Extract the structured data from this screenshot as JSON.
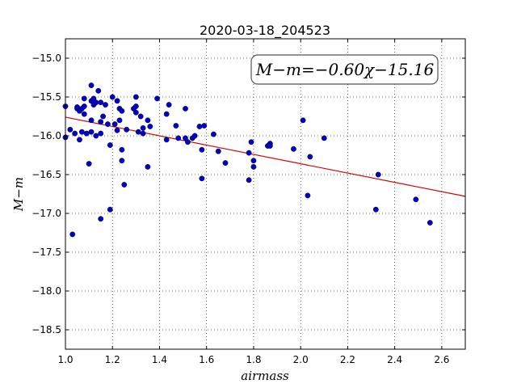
{
  "chart_data": {
    "type": "scatter",
    "title": "2020-03-18_204523",
    "xlabel": "airmass",
    "ylabel": "M−m",
    "xlim": [
      1.0,
      2.7
    ],
    "ylim": [
      -18.75,
      -14.75
    ],
    "y_inverted": true,
    "grid": true,
    "x_ticks": [
      1.0,
      1.2,
      1.4,
      1.6,
      1.8,
      2.0,
      2.2,
      2.4,
      2.6
    ],
    "x_tick_labels": [
      "1.0",
      "1.2",
      "1.4",
      "1.6",
      "1.8",
      "2.0",
      "2.2",
      "2.4",
      "2.6"
    ],
    "y_ticks": [
      -15.0,
      -15.5,
      -16.0,
      -16.5,
      -17.0,
      -17.5,
      -18.0,
      -18.5
    ],
    "y_tick_labels": [
      "−15.0",
      "−15.5",
      "−16.0",
      "−16.5",
      "−17.0",
      "−17.5",
      "−18.0",
      "−18.5"
    ],
    "annotation": "M−m=−0.60χ−15.16",
    "annotation_placement": "top-right",
    "fit": {
      "slope": -0.6,
      "intercept": -15.16,
      "color": "#d40000"
    },
    "marker_color": "#0000c8",
    "points": [
      [
        1.0,
        -15.62
      ],
      [
        1.0,
        -16.02
      ],
      [
        1.02,
        -15.92
      ],
      [
        1.03,
        -17.27
      ],
      [
        1.04,
        -15.97
      ],
      [
        1.05,
        -15.65
      ],
      [
        1.05,
        -15.63
      ],
      [
        1.06,
        -15.68
      ],
      [
        1.06,
        -16.05
      ],
      [
        1.07,
        -15.65
      ],
      [
        1.07,
        -15.95
      ],
      [
        1.08,
        -15.52
      ],
      [
        1.08,
        -15.62
      ],
      [
        1.08,
        -15.72
      ],
      [
        1.09,
        -15.97
      ],
      [
        1.1,
        -16.36
      ],
      [
        1.11,
        -15.35
      ],
      [
        1.11,
        -15.55
      ],
      [
        1.11,
        -15.8
      ],
      [
        1.11,
        -15.95
      ],
      [
        1.12,
        -15.6
      ],
      [
        1.12,
        -15.52
      ],
      [
        1.13,
        -16.0
      ],
      [
        1.13,
        -15.57
      ],
      [
        1.14,
        -15.42
      ],
      [
        1.15,
        -15.57
      ],
      [
        1.15,
        -15.82
      ],
      [
        1.15,
        -15.97
      ],
      [
        1.15,
        -17.07
      ],
      [
        1.16,
        -15.75
      ],
      [
        1.17,
        -15.6
      ],
      [
        1.18,
        -15.85
      ],
      [
        1.19,
        -16.12
      ],
      [
        1.19,
        -16.95
      ],
      [
        1.2,
        -15.5
      ],
      [
        1.21,
        -15.85
      ],
      [
        1.22,
        -15.55
      ],
      [
        1.22,
        -15.93
      ],
      [
        1.23,
        -15.65
      ],
      [
        1.23,
        -15.8
      ],
      [
        1.24,
        -15.68
      ],
      [
        1.24,
        -16.18
      ],
      [
        1.24,
        -16.32
      ],
      [
        1.25,
        -16.63
      ],
      [
        1.26,
        -15.92
      ],
      [
        1.29,
        -15.65
      ],
      [
        1.3,
        -15.5
      ],
      [
        1.3,
        -15.62
      ],
      [
        1.3,
        -15.7
      ],
      [
        1.31,
        -15.95
      ],
      [
        1.32,
        -15.75
      ],
      [
        1.33,
        -15.9
      ],
      [
        1.33,
        -15.97
      ],
      [
        1.35,
        -16.4
      ],
      [
        1.36,
        -15.88
      ],
      [
        1.35,
        -15.8
      ],
      [
        1.39,
        -15.52
      ],
      [
        1.43,
        -15.72
      ],
      [
        1.43,
        -16.05
      ],
      [
        1.44,
        -15.6
      ],
      [
        1.47,
        -15.87
      ],
      [
        1.48,
        -16.03
      ],
      [
        1.51,
        -15.65
      ],
      [
        1.51,
        -16.03
      ],
      [
        1.52,
        -16.08
      ],
      [
        1.54,
        -16.03
      ],
      [
        1.55,
        -16.0
      ],
      [
        1.57,
        -15.88
      ],
      [
        1.58,
        -16.18
      ],
      [
        1.58,
        -16.55
      ],
      [
        1.59,
        -15.87
      ],
      [
        1.63,
        -15.98
      ],
      [
        1.65,
        -16.2
      ],
      [
        1.68,
        -16.35
      ],
      [
        1.78,
        -16.22
      ],
      [
        1.78,
        -16.57
      ],
      [
        1.79,
        -16.08
      ],
      [
        1.8,
        -16.32
      ],
      [
        1.8,
        -16.4
      ],
      [
        1.86,
        -16.13
      ],
      [
        1.87,
        -16.1
      ],
      [
        1.87,
        -16.13
      ],
      [
        1.97,
        -16.17
      ],
      [
        2.01,
        -15.8
      ],
      [
        2.03,
        -16.77
      ],
      [
        2.04,
        -16.27
      ],
      [
        2.1,
        -16.03
      ],
      [
        2.32,
        -16.95
      ],
      [
        2.33,
        -16.5
      ],
      [
        2.49,
        -16.82
      ],
      [
        2.55,
        -17.12
      ]
    ]
  }
}
